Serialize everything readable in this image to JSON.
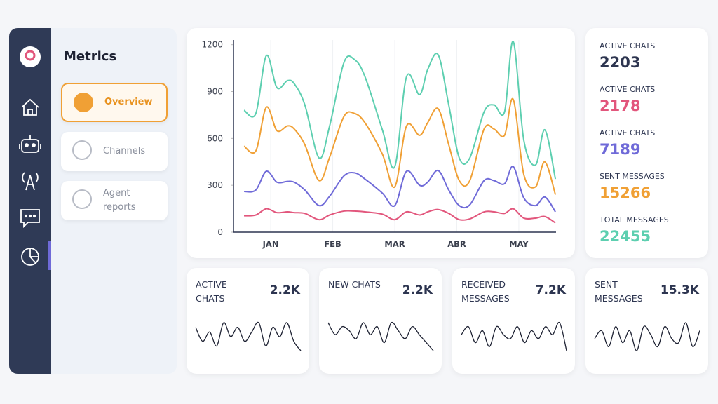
{
  "sidebar": {
    "title": "Metrics"
  },
  "menu": [
    {
      "label": "Overview",
      "active": true
    },
    {
      "label": "Channels",
      "active": false
    },
    {
      "label": "Agent reports",
      "active": false
    }
  ],
  "chart_data": {
    "type": "line",
    "x": [
      0.57,
      0.76,
      0.93,
      1.1,
      1.27,
      1.38,
      1.55,
      1.78,
      1.95,
      2.18,
      2.35,
      2.52,
      2.8,
      3.0,
      3.19,
      3.4,
      3.53,
      3.7,
      3.87,
      4.04,
      4.21,
      4.44,
      4.6,
      4.77,
      4.91,
      5.08,
      5.27,
      5.42,
      5.59
    ],
    "xlim": [
      0.4,
      5.6
    ],
    "xticks": [
      {
        "value": 1,
        "label": "JAN"
      },
      {
        "value": 2,
        "label": "FEB"
      },
      {
        "value": 3,
        "label": "MAR"
      },
      {
        "value": 4,
        "label": "ABR"
      },
      {
        "value": 5,
        "label": "MAY"
      }
    ],
    "ylim": [
      0,
      1230
    ],
    "yticks": [
      0,
      300,
      600,
      900,
      1200
    ],
    "grid": true,
    "series": [
      {
        "color": "#5dcfb0",
        "values": [
          780,
          760,
          1130,
          925,
          970,
          950,
          815,
          475,
          680,
          1085,
          1105,
          995,
          655,
          420,
          995,
          880,
          1040,
          1135,
          815,
          475,
          475,
          770,
          815,
          770,
          1220,
          590,
          430,
          655,
          340
        ]
      },
      {
        "color": "#f0a035",
        "values": [
          550,
          520,
          800,
          650,
          680,
          660,
          560,
          330,
          480,
          740,
          760,
          700,
          500,
          290,
          680,
          620,
          700,
          790,
          560,
          330,
          330,
          660,
          660,
          620,
          850,
          370,
          290,
          450,
          240
        ]
      },
      {
        "color": "#6f6ad8",
        "values": [
          260,
          270,
          390,
          320,
          325,
          320,
          270,
          170,
          230,
          360,
          380,
          340,
          250,
          170,
          390,
          300,
          320,
          395,
          270,
          170,
          175,
          330,
          330,
          310,
          420,
          220,
          170,
          225,
          130
        ]
      },
      {
        "color": "#e2567c",
        "values": [
          105,
          110,
          150,
          125,
          130,
          125,
          120,
          80,
          110,
          135,
          135,
          130,
          115,
          80,
          130,
          110,
          130,
          145,
          120,
          80,
          85,
          130,
          130,
          120,
          150,
          90,
          90,
          100,
          60
        ]
      }
    ]
  },
  "stats": [
    {
      "label": "ACTIVE CHATS",
      "value": "2203",
      "color": "#2d3550"
    },
    {
      "label": "ACTIVE CHATS",
      "value": "2178",
      "color": "#e2567c"
    },
    {
      "label": "ACTIVE CHATS",
      "value": "7189",
      "color": "#6f6ad8"
    },
    {
      "label": "SENT MESSAGES",
      "value": "15266",
      "color": "#f0a035"
    },
    {
      "label": "TOTAL MESSAGES",
      "value": "22455",
      "color": "#5dcfb0"
    }
  ],
  "cards": [
    {
      "label": "ACTIVE CHATS",
      "value": "2.2K",
      "sparkline": [
        6,
        3,
        5,
        2,
        7,
        4,
        6,
        3,
        5,
        7,
        2,
        6,
        4,
        7,
        3,
        1
      ]
    },
    {
      "label": "NEW CHATS",
      "value": "2.2K",
      "sparkline": [
        7,
        4,
        6,
        5,
        3,
        7,
        4,
        6,
        2,
        7,
        5,
        3,
        6,
        4,
        2,
        0
      ]
    },
    {
      "label": "RECEIVED MESSAGES",
      "value": "7.2K",
      "sparkline": [
        5,
        7,
        3,
        6,
        2,
        7,
        5,
        4,
        7,
        3,
        6,
        4,
        7,
        5,
        8,
        1
      ]
    },
    {
      "label": "SENT MESSAGES",
      "value": "15.3K",
      "sparkline": [
        4,
        6,
        2,
        7,
        3,
        6,
        1,
        7,
        5,
        2,
        7,
        4,
        3,
        8,
        2,
        6
      ]
    }
  ]
}
